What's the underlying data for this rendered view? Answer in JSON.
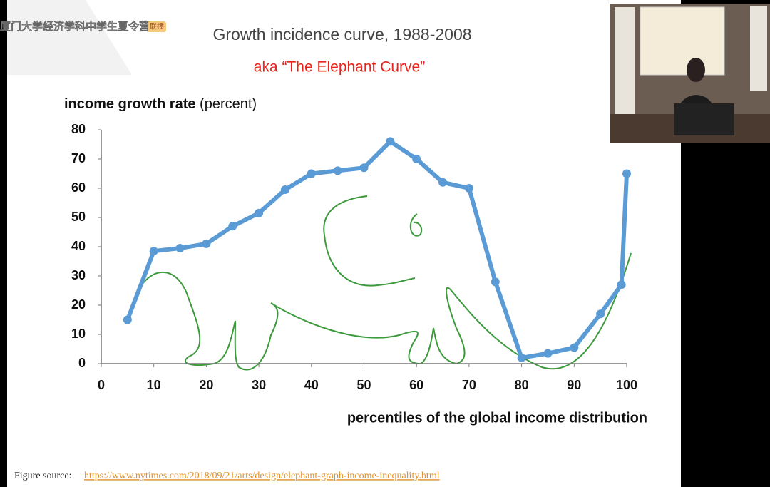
{
  "watermark": {
    "text": "厦门大学经济学科中学生夏令营",
    "tag": "联播"
  },
  "chart_data": {
    "type": "line",
    "title": "Growth incidence curve, 1988-2008",
    "subtitle": "aka “The Elephant Curve”",
    "y_label": "income growth rate",
    "y_label_unit": "(percent)",
    "x_label": "percentiles of the global income distribution",
    "x": [
      5,
      10,
      15,
      20,
      25,
      30,
      35,
      40,
      45,
      50,
      55,
      60,
      65,
      70,
      75,
      80,
      85,
      90,
      95,
      99,
      100
    ],
    "series": [
      {
        "color": "#5b9bd5",
        "values": [
          15,
          38.5,
          39.5,
          41,
          47,
          51.5,
          59.5,
          65,
          66,
          67,
          76,
          70,
          62,
          60,
          28,
          2,
          3.5,
          5.5,
          17,
          27,
          65
        ]
      }
    ],
    "xlim": [
      0,
      100
    ],
    "xticks": [
      0,
      10,
      20,
      30,
      40,
      50,
      60,
      70,
      80,
      90,
      100
    ],
    "ylim": [
      0,
      80
    ],
    "yticks": [
      0,
      10,
      20,
      30,
      40,
      50,
      60,
      70,
      80
    ],
    "grid": false
  },
  "source": {
    "label": "Figure source:",
    "url": "https://www.nytimes.com/2018/09/21/arts/design/elephant-graph-income-inequality.html"
  }
}
